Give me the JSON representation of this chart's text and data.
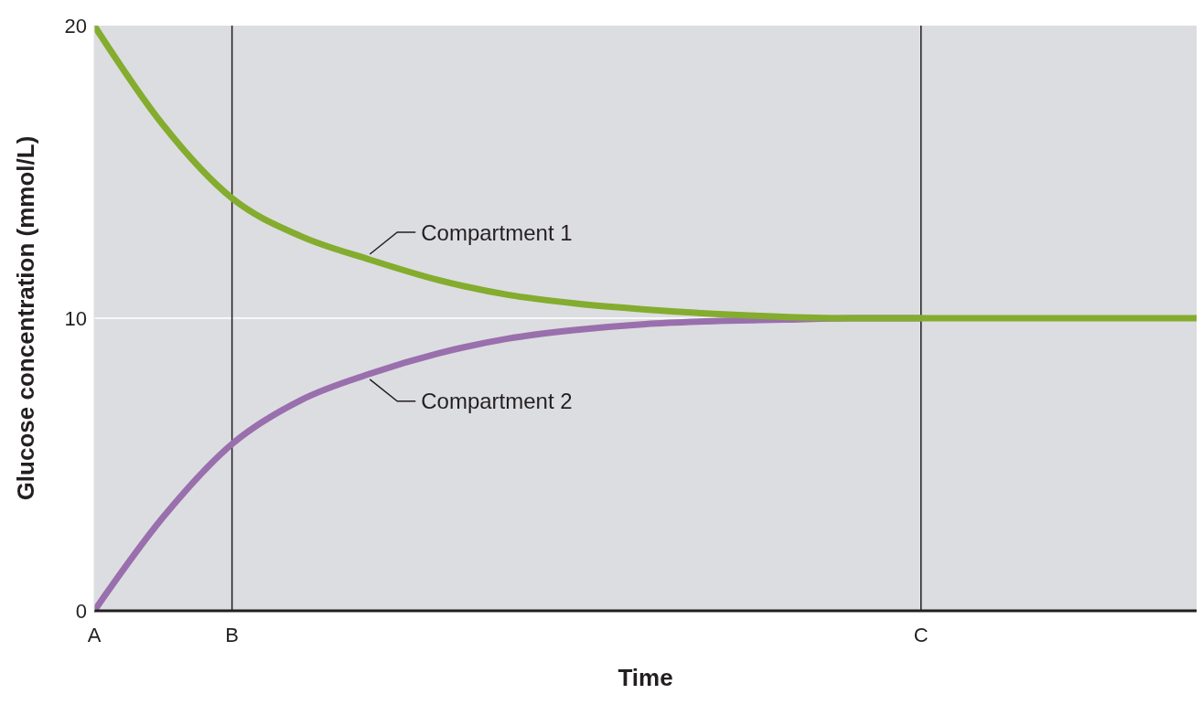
{
  "chart_data": {
    "type": "line",
    "xlabel": "Time",
    "ylabel": "Glucose concentration (mmol/L)",
    "categories": [
      "A",
      null,
      "B",
      null,
      null,
      null,
      null,
      null,
      null,
      null,
      null,
      null,
      "C",
      null,
      null,
      null,
      null
    ],
    "series": [
      {
        "name": "Compartment 1",
        "color": "#84ac2e",
        "values": [
          20,
          16.6,
          14.1,
          12.8,
          12.0,
          11.3,
          10.8,
          10.5,
          10.3,
          10.15,
          10.05,
          10,
          10,
          10,
          10,
          10,
          10
        ]
      },
      {
        "name": "Compartment 2",
        "color": "#9a6fad",
        "values": [
          0,
          3.2,
          5.7,
          7.2,
          8.1,
          8.8,
          9.3,
          9.6,
          9.8,
          9.9,
          9.95,
          10,
          10,
          null,
          null,
          null,
          null
        ]
      }
    ],
    "ylim": [
      0,
      20
    ],
    "yticks": [
      0,
      10,
      20
    ],
    "marker": "none",
    "line_style": "solid",
    "ref_lines": [
      {
        "axis": "y",
        "value": 10,
        "color": "#ffffff"
      },
      {
        "axis": "x",
        "value": "B",
        "color": "#231f20"
      },
      {
        "axis": "x",
        "value": "C",
        "color": "#231f20"
      }
    ]
  }
}
